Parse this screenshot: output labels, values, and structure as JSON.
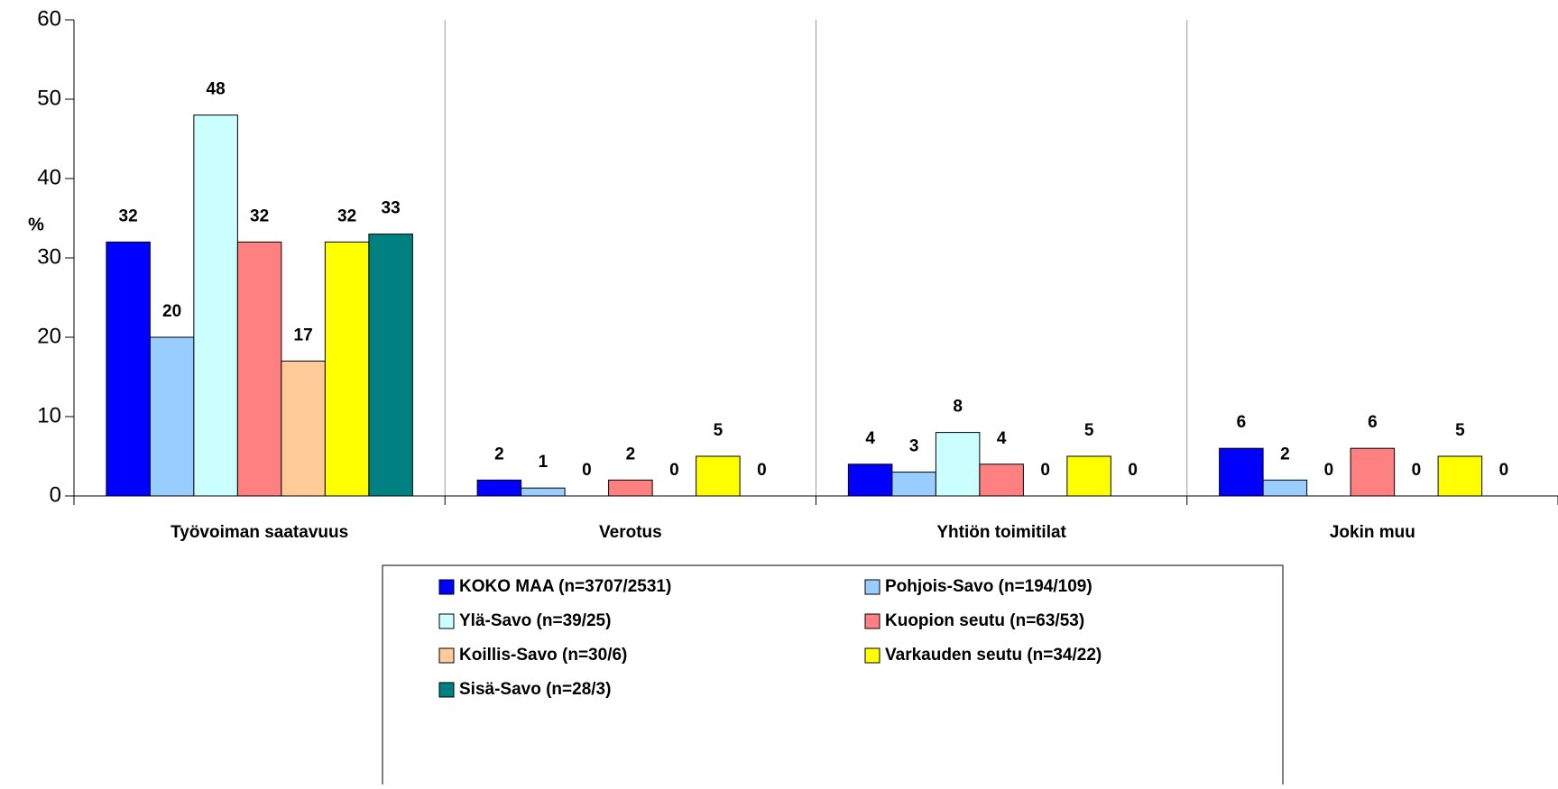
{
  "chart_data": {
    "type": "bar",
    "y_label": "%",
    "categories": [
      "Työvoiman saatavuus",
      "Verotus",
      "Yhtiön toimitilat",
      "Jokin muu"
    ],
    "series": [
      {
        "name": "KOKO MAA (n=3707/2531)",
        "color": "#0000ff",
        "values": [
          32,
          2,
          4,
          6
        ]
      },
      {
        "name": "Pohjois-Savo (n=194/109)",
        "color": "#99ccff",
        "values": [
          20,
          1,
          3,
          2
        ]
      },
      {
        "name": "Ylä-Savo (n=39/25)",
        "color": "#ccffff",
        "values": [
          48,
          0,
          8,
          0
        ]
      },
      {
        "name": "Kuopion seutu (n=63/53)",
        "color": "#ff8080",
        "values": [
          32,
          2,
          4,
          6
        ]
      },
      {
        "name": "Koillis-Savo (n=30/6)",
        "color": "#ffcc99",
        "values": [
          17,
          0,
          0,
          0
        ]
      },
      {
        "name": "Varkauden seutu (n=34/22)",
        "color": "#ffff00",
        "values": [
          32,
          5,
          5,
          5
        ]
      },
      {
        "name": "Sisä-Savo (n=28/3)",
        "color": "#008080",
        "values": [
          33,
          0,
          0,
          0
        ]
      }
    ],
    "ylim": [
      0,
      60
    ],
    "yticks": [
      0,
      10,
      20,
      30,
      40,
      50,
      60
    ],
    "grid": true,
    "legend": "bottom"
  }
}
